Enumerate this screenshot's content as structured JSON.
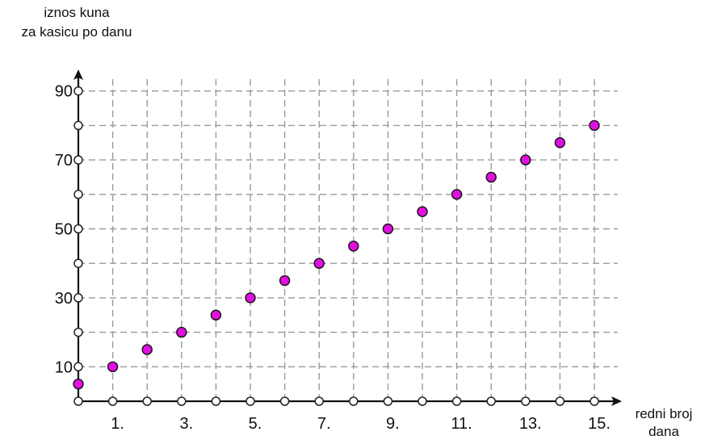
{
  "chart_data": {
    "type": "scatter",
    "title": "",
    "ylabel": [
      "iznos kuna",
      "za kasicu po danu"
    ],
    "xlabel": [
      "redni broj",
      "dana"
    ],
    "xlim": [
      0,
      15
    ],
    "ylim": [
      0,
      90
    ],
    "x_ticks": [
      1,
      2,
      3,
      4,
      5,
      6,
      7,
      8,
      9,
      10,
      11,
      12,
      13,
      14,
      15
    ],
    "x_tick_labels": [
      "1.",
      "3.",
      "5.",
      "7.",
      "9.",
      "11.",
      "13.",
      "15."
    ],
    "x_tick_label_values": [
      1,
      3,
      5,
      7,
      9,
      11,
      13,
      15
    ],
    "y_ticks": [
      10,
      20,
      30,
      40,
      50,
      60,
      70,
      80,
      90
    ],
    "y_tick_labels": [
      "10",
      "30",
      "50",
      "70",
      "90"
    ],
    "y_tick_label_values": [
      10,
      30,
      50,
      70,
      90
    ],
    "grid": true,
    "point_color": "#e010e0",
    "x": [
      0,
      1,
      2,
      3,
      4,
      5,
      6,
      7,
      8,
      9,
      10,
      11,
      12,
      13,
      14,
      15
    ],
    "y": [
      5,
      10,
      15,
      20,
      25,
      30,
      35,
      40,
      45,
      50,
      55,
      60,
      65,
      70,
      75,
      80
    ]
  }
}
